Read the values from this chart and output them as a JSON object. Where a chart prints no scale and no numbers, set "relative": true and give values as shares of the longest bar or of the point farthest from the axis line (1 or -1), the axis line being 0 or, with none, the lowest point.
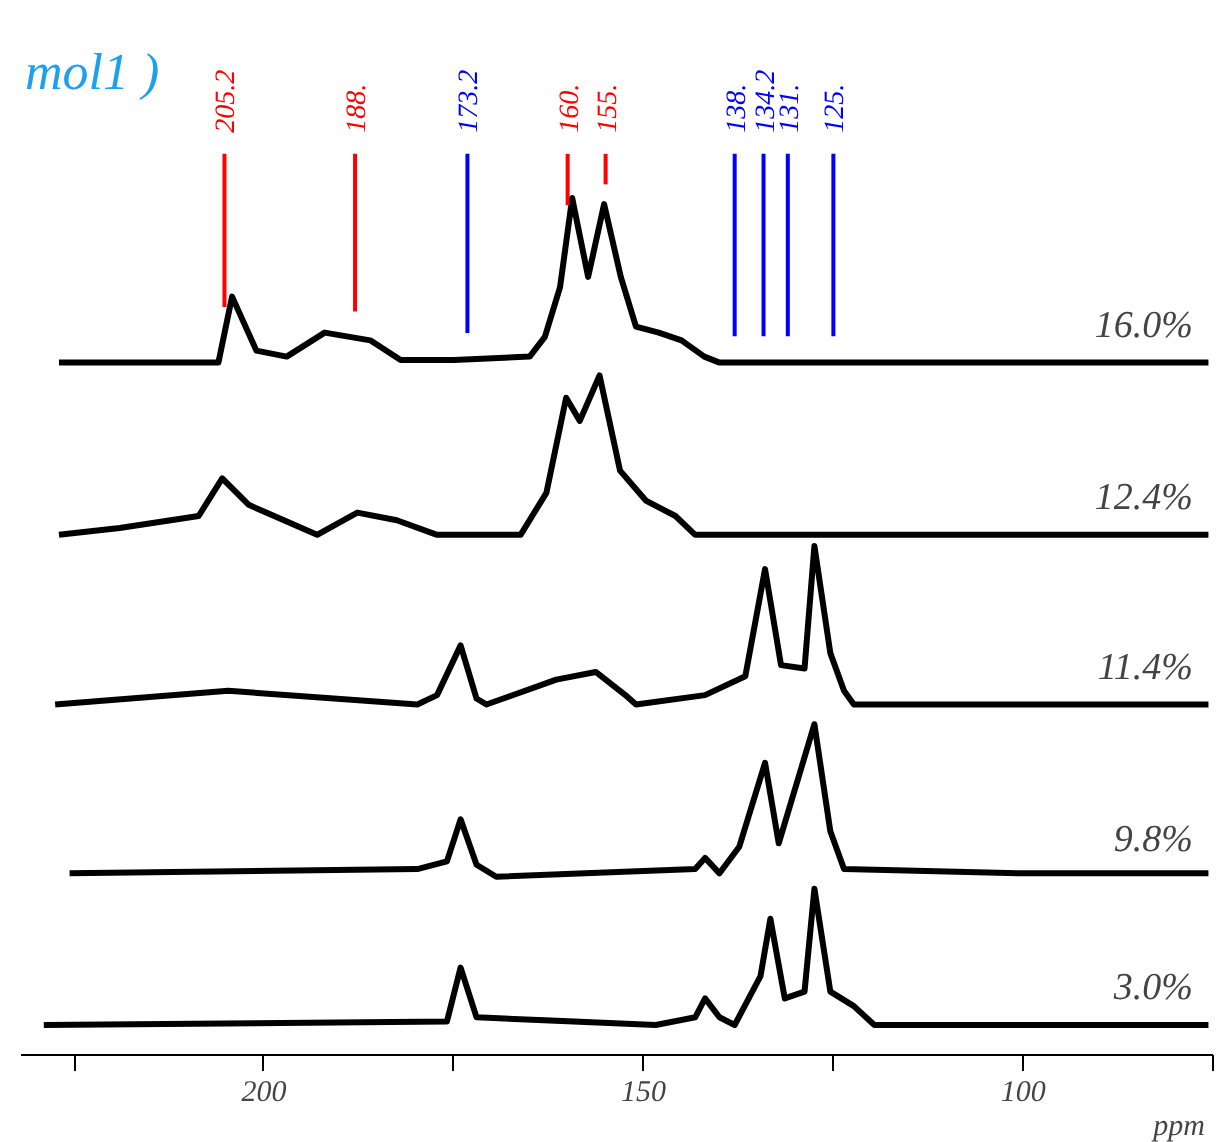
{
  "chart_data": {
    "type": "line",
    "title": "mol1 )",
    "xlabel": "ppm",
    "relative": true,
    "tick_labels": "x",
    "grid": false,
    "marker": "none",
    "line_style": "solid",
    "xlim": [
      232,
      75
    ],
    "xticks": [
      {
        "value": 225,
        "label": null
      },
      200,
      {
        "value": 175,
        "label": null
      },
      150,
      {
        "value": 125,
        "label": null
      },
      100,
      {
        "value": 75,
        "label": null
      }
    ],
    "ref_lines": [
      {
        "axis": "x",
        "value": 205.2,
        "label": "205.2",
        "color": "#ff0000"
      },
      {
        "axis": "x",
        "value": 188,
        "label": "188.",
        "color": "#ff0000"
      },
      {
        "axis": "x",
        "value": 173.2,
        "label": "173.2",
        "color": "#0000ff"
      },
      {
        "axis": "x",
        "value": 160,
        "label": "160.",
        "color": "#ff0000"
      },
      {
        "axis": "x",
        "value": 155,
        "label": "155.",
        "color": "#ff0000"
      },
      {
        "axis": "x",
        "value": 138,
        "label": "138.",
        "color": "#0000ff"
      },
      {
        "axis": "x",
        "value": 134.2,
        "label": "134.2",
        "color": "#0000ff"
      },
      {
        "axis": "x",
        "value": 131,
        "label": "131.",
        "color": "#0000ff"
      },
      {
        "axis": "x",
        "value": 125,
        "label": "125.",
        "color": "#0000ff"
      }
    ],
    "series": [
      {
        "name": "16.0%",
        "color": "#000000",
        "x": [
          227,
          206,
          204.2,
          201,
          197,
          192,
          186,
          182,
          175,
          165,
          163,
          161,
          159.4,
          157.3,
          155.2,
          153,
          151,
          148,
          145,
          142,
          140,
          120,
          100,
          75.6
        ],
        "values": [
          0.808,
          0.808,
          0.885,
          0.822,
          0.815,
          0.843,
          0.834,
          0.811,
          0.811,
          0.815,
          0.838,
          0.896,
          1.0,
          0.908,
          0.993,
          0.908,
          0.85,
          0.843,
          0.834,
          0.815,
          0.808,
          0.808,
          0.808,
          0.808
        ]
      },
      {
        "name": "12.4%",
        "color": "#000000",
        "x": [
          227,
          219,
          208.6,
          205.5,
          202,
          193,
          187.7,
          182.5,
          177.2,
          166.2,
          162.8,
          160.2,
          158.4,
          155.8,
          153.1,
          149.7,
          145.8,
          143.2,
          120,
          100,
          75.6
        ],
        "values": [
          0.607,
          0.615,
          0.629,
          0.673,
          0.642,
          0.607,
          0.633,
          0.624,
          0.607,
          0.607,
          0.656,
          0.767,
          0.74,
          0.793,
          0.682,
          0.647,
          0.629,
          0.607,
          0.607,
          0.607,
          0.607
        ]
      },
      {
        "name": "11.4%",
        "color": "#000000",
        "x": [
          227.5,
          204.7,
          179.8,
          177.2,
          174.1,
          172,
          170.7,
          161.5,
          156.3,
          152.4,
          151,
          141.9,
          136.6,
          134,
          131.9,
          128.8,
          127.5,
          125.4,
          123.6,
          122.3,
          100,
          75.6
        ],
        "values": [
          0.409,
          0.425,
          0.409,
          0.42,
          0.478,
          0.416,
          0.409,
          0.438,
          0.447,
          0.42,
          0.409,
          0.42,
          0.442,
          0.567,
          0.455,
          0.451,
          0.594,
          0.469,
          0.425,
          0.409,
          0.409,
          0.409
        ]
      },
      {
        "name": "9.8%",
        "color": "#000000",
        "x": [
          225.6,
          179.8,
          175.9,
          174.1,
          172,
          169.4,
          143.2,
          141.9,
          140,
          137.4,
          134,
          132.2,
          127.5,
          125.4,
          123.6,
          100,
          75.6
        ],
        "values": [
          0.212,
          0.217,
          0.226,
          0.275,
          0.222,
          0.208,
          0.217,
          0.23,
          0.212,
          0.243,
          0.341,
          0.247,
          0.386,
          0.261,
          0.217,
          0.212,
          0.212
        ]
      },
      {
        "name": "3.0%",
        "color": "#000000",
        "x": [
          229,
          175.9,
          174.1,
          172,
          148.4,
          143.2,
          141.9,
          140,
          138,
          134.6,
          133.3,
          131.4,
          128.8,
          127.5,
          125.4,
          122.3,
          119.6,
          100,
          75.6
        ],
        "values": [
          0.035,
          0.039,
          0.102,
          0.044,
          0.035,
          0.044,
          0.066,
          0.044,
          0.035,
          0.092,
          0.159,
          0.066,
          0.074,
          0.194,
          0.074,
          0.057,
          0.035,
          0.035,
          0.035
        ]
      }
    ]
  }
}
